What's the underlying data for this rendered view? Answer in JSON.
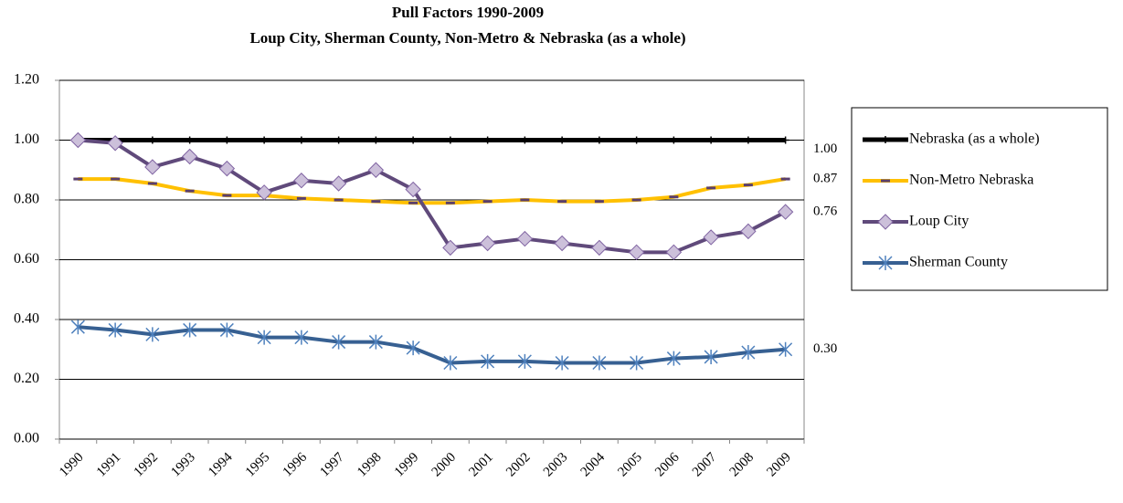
{
  "chart_data": {
    "type": "line",
    "title": "Pull Factors 1990-2009",
    "subtitle": "Loup City, Sherman County, Non-Metro & Nebraska (as a whole)",
    "categories": [
      "1990",
      "1991",
      "1992",
      "1993",
      "1994",
      "1995",
      "1996",
      "1997",
      "1998",
      "1999",
      "2000",
      "2001",
      "2002",
      "2003",
      "2004",
      "2005",
      "2006",
      "2007",
      "2008",
      "2009"
    ],
    "ylim": [
      0,
      1.2
    ],
    "yticks": [
      {
        "value": 0,
        "label": "0.00"
      },
      {
        "value": 0.2,
        "label": "0.20"
      },
      {
        "value": 0.4,
        "label": "0.40"
      },
      {
        "value": 0.6,
        "label": "0.60"
      },
      {
        "value": 0.8,
        "label": "0.80"
      },
      {
        "value": 1,
        "label": "1.00"
      },
      {
        "value": 1.2,
        "label": "1.20"
      }
    ],
    "grid": true,
    "legend": "right",
    "series": [
      {
        "name": "Nebraska (as a whole)",
        "color": "#000000",
        "marker": "plus",
        "marker_color": "#000000",
        "values": [
          1,
          1,
          1,
          1,
          1,
          1,
          1,
          1,
          1,
          1,
          1,
          1,
          1,
          1,
          1,
          1,
          1,
          1,
          1,
          1
        ],
        "value_labels": [
          null,
          null,
          null,
          null,
          null,
          null,
          null,
          null,
          null,
          null,
          null,
          null,
          null,
          null,
          null,
          null,
          null,
          null,
          null,
          "1.00"
        ]
      },
      {
        "name": "Non-Metro Nebraska",
        "color": "#ffc000",
        "marker": "dash",
        "marker_color": "#5a3f6e",
        "values": [
          0.87,
          0.87,
          0.855,
          0.83,
          0.815,
          0.815,
          0.805,
          0.8,
          0.795,
          0.79,
          0.79,
          0.795,
          0.8,
          0.795,
          0.795,
          0.8,
          0.81,
          0.84,
          0.85,
          0.87
        ],
        "value_labels": [
          null,
          null,
          null,
          null,
          null,
          null,
          null,
          null,
          null,
          null,
          null,
          null,
          null,
          null,
          null,
          null,
          null,
          null,
          null,
          "0.87"
        ]
      },
      {
        "name": "Loup City",
        "color": "#604a7b",
        "marker": "diamond",
        "marker_color": "#ccc0da",
        "values": [
          1,
          0.99,
          0.91,
          0.945,
          0.905,
          0.825,
          0.865,
          0.855,
          0.9,
          0.835,
          0.64,
          0.655,
          0.67,
          0.655,
          0.64,
          0.625,
          0.625,
          0.675,
          0.695,
          0.76
        ],
        "value_labels": [
          null,
          null,
          null,
          null,
          null,
          null,
          null,
          null,
          null,
          null,
          null,
          null,
          null,
          null,
          null,
          null,
          null,
          null,
          null,
          "0.76"
        ]
      },
      {
        "name": "Sherman County",
        "color": "#376092",
        "marker": "star",
        "marker_color": "#4f81bd",
        "values": [
          0.375,
          0.365,
          0.35,
          0.365,
          0.365,
          0.34,
          0.34,
          0.325,
          0.325,
          0.305,
          0.255,
          0.26,
          0.26,
          0.255,
          0.255,
          0.255,
          0.27,
          0.275,
          0.29,
          0.3
        ],
        "value_labels": [
          null,
          null,
          null,
          null,
          null,
          null,
          null,
          null,
          null,
          null,
          null,
          null,
          null,
          null,
          null,
          null,
          null,
          null,
          null,
          "0.30"
        ]
      }
    ]
  }
}
